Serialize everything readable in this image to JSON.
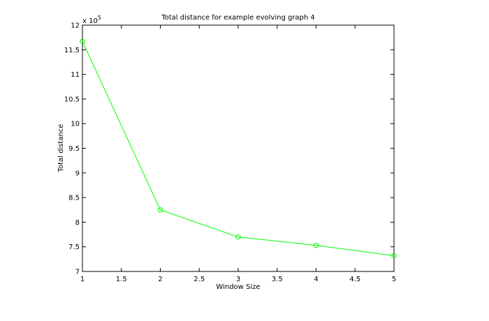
{
  "chart_data": {
    "type": "line",
    "title": "Total distance for example evolving graph 4",
    "xlabel": "Window Size",
    "ylabel": "Total distance",
    "y_multiplier_base": "x 10",
    "y_multiplier_exp": "5",
    "xlim": [
      1,
      5
    ],
    "ylim": [
      7,
      12
    ],
    "grid": false,
    "x_ticks": [
      "1",
      "1.5",
      "2",
      "2.5",
      "3",
      "3.5",
      "4",
      "4.5",
      "5"
    ],
    "y_ticks": [
      "7",
      "7.5",
      "8",
      "8.5",
      "9",
      "9.5",
      "10",
      "10.5",
      "11",
      "11.5",
      "12"
    ],
    "series": [
      {
        "color": "#00ff00",
        "marker": "circle",
        "x": [
          1,
          2,
          3,
          4,
          5
        ],
        "y": [
          11.67,
          8.25,
          7.7,
          7.53,
          7.32
        ]
      }
    ]
  }
}
